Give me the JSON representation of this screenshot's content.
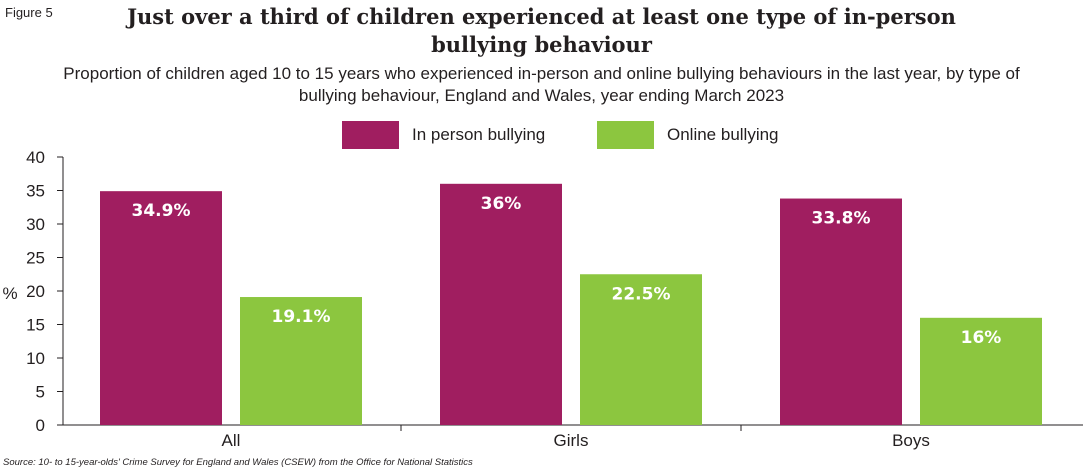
{
  "figure_label": "Figure 5",
  "source_note": "Source: 10- to 15-year-olds' Crime Survey for England and Wales (CSEW) from the Office for National Statistics",
  "colors": {
    "in_person": "#a01e60",
    "online": "#8cc63f",
    "axis": "#231f20"
  },
  "chart_data": {
    "type": "bar",
    "title": "Just over a third of children experienced at least one type of in-person bullying behaviour",
    "subtitle": "Proportion of children aged 10 to 15 years who experienced in-person and online bullying behaviours in the last year, by type of bullying behaviour, England and Wales, year ending March 2023",
    "ylabel": "%",
    "xlabel": "",
    "categories": [
      "All",
      "Girls",
      "Boys"
    ],
    "ylim": [
      0,
      40
    ],
    "yticks": [
      0,
      5,
      10,
      15,
      20,
      25,
      30,
      35,
      40
    ],
    "grid": false,
    "legend_position": "top-center",
    "series": [
      {
        "name": "In person bullying",
        "values": [
          34.9,
          36,
          33.8
        ],
        "labels": [
          "34.9%",
          "36%",
          "33.8%"
        ],
        "color": "#a01e60"
      },
      {
        "name": "Online bullying",
        "values": [
          19.1,
          22.5,
          16
        ],
        "labels": [
          "19.1%",
          "22.5%",
          "16%"
        ],
        "color": "#8cc63f"
      }
    ]
  }
}
